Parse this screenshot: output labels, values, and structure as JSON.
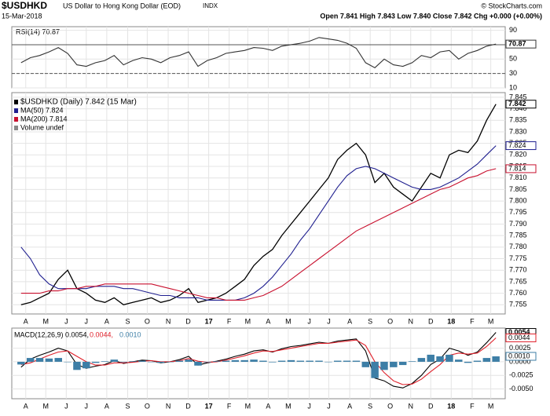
{
  "chart_data": [
    {
      "type": "header",
      "symbol": "$USDHKD",
      "name": "US Dollar to Hong Kong Dollar (EOD)",
      "exchange": "INDX",
      "date": "15-Mar-2018",
      "quote": "Open 7.841   High 7.843   Low 7.840   Close 7.842   Chg +0.000 (+0.00%)",
      "credit": "© StockCharts.com"
    },
    {
      "type": "line",
      "panel": "rsi",
      "title": "RSI(14) 70.87",
      "x": [
        0,
        2,
        4,
        6,
        8,
        10,
        12,
        14,
        16,
        18,
        20,
        22,
        24,
        26,
        28,
        30,
        32,
        34,
        36,
        38,
        40,
        42,
        44,
        46,
        48,
        50,
        52,
        54,
        56,
        58,
        60,
        62,
        64,
        66,
        68,
        70,
        72,
        74,
        76,
        78,
        80,
        82,
        84,
        86,
        88,
        90,
        92,
        94,
        96,
        98,
        100,
        102
      ],
      "xlim": [
        -2,
        104
      ],
      "series": [
        {
          "name": "RSI(14)",
          "color": "#333333",
          "values": [
            45,
            52,
            55,
            60,
            66,
            58,
            42,
            40,
            45,
            48,
            55,
            42,
            48,
            52,
            50,
            45,
            52,
            55,
            60,
            40,
            48,
            52,
            58,
            60,
            62,
            66,
            65,
            62,
            68,
            70,
            72,
            75,
            80,
            78,
            76,
            72,
            65,
            45,
            38,
            50,
            42,
            40,
            45,
            55,
            52,
            60,
            62,
            50,
            58,
            62,
            68,
            70.87
          ]
        }
      ],
      "ref_lines": [
        70,
        30
      ],
      "ylim": [
        10,
        95
      ],
      "yticks": [
        10,
        30,
        50,
        70,
        90
      ]
    },
    {
      "type": "line",
      "panel": "price",
      "x": [
        0,
        2,
        4,
        6,
        8,
        10,
        12,
        14,
        16,
        18,
        20,
        22,
        24,
        26,
        28,
        30,
        32,
        34,
        36,
        38,
        40,
        42,
        44,
        46,
        48,
        50,
        52,
        54,
        56,
        58,
        60,
        62,
        64,
        66,
        68,
        70,
        72,
        74,
        76,
        78,
        80,
        82,
        84,
        86,
        88,
        90,
        92,
        94,
        96,
        98,
        100,
        102
      ],
      "xlim": [
        -2,
        104
      ],
      "series": [
        {
          "name": "$USDHKD (Daily) 7.842 (15 Mar)",
          "color": "#000000",
          "values": [
            7.755,
            7.756,
            7.758,
            7.76,
            7.766,
            7.77,
            7.762,
            7.76,
            7.757,
            7.756,
            7.758,
            7.755,
            7.756,
            7.757,
            7.758,
            7.756,
            7.757,
            7.759,
            7.762,
            7.756,
            7.757,
            7.758,
            7.76,
            7.763,
            7.766,
            7.772,
            7.776,
            7.779,
            7.785,
            7.79,
            7.795,
            7.8,
            7.805,
            7.81,
            7.818,
            7.822,
            7.825,
            7.82,
            7.808,
            7.812,
            7.806,
            7.803,
            7.8,
            7.806,
            7.812,
            7.81,
            7.82,
            7.822,
            7.821,
            7.826,
            7.835,
            7.842
          ]
        },
        {
          "name": "MA(50) 7.824",
          "color": "#1f1f8f",
          "values": [
            7.78,
            7.775,
            7.768,
            7.764,
            7.762,
            7.762,
            7.762,
            7.762,
            7.763,
            7.763,
            7.763,
            7.762,
            7.762,
            7.761,
            7.76,
            7.759,
            7.759,
            7.758,
            7.758,
            7.758,
            7.757,
            7.757,
            7.757,
            7.757,
            7.758,
            7.76,
            7.763,
            7.767,
            7.772,
            7.777,
            7.783,
            7.788,
            7.794,
            7.8,
            7.806,
            7.811,
            7.814,
            7.815,
            7.814,
            7.812,
            7.81,
            7.808,
            7.806,
            7.805,
            7.805,
            7.806,
            7.808,
            7.81,
            7.813,
            7.816,
            7.82,
            7.824
          ]
        },
        {
          "name": "MA(200) 7.814",
          "color": "#c8102e",
          "values": [
            7.76,
            7.76,
            7.76,
            7.761,
            7.761,
            7.762,
            7.762,
            7.763,
            7.763,
            7.764,
            7.764,
            7.764,
            7.764,
            7.764,
            7.764,
            7.763,
            7.762,
            7.761,
            7.76,
            7.759,
            7.758,
            7.758,
            7.757,
            7.757,
            7.757,
            7.758,
            7.759,
            7.761,
            7.763,
            7.766,
            7.769,
            7.772,
            7.775,
            7.778,
            7.781,
            7.784,
            7.787,
            7.789,
            7.791,
            7.793,
            7.795,
            7.797,
            7.799,
            7.801,
            7.803,
            7.805,
            7.806,
            7.808,
            7.81,
            7.811,
            7.813,
            7.814
          ]
        }
      ],
      "legend_extra": "Volume undef",
      "ylim": [
        7.751,
        7.847
      ],
      "yticks": [
        7.755,
        {
          "value": 7.76,
          "label": "7.760"
        },
        7.765,
        {
          "value": 7.77,
          "label": "7.770"
        },
        7.775,
        {
          "value": 7.78,
          "label": "7.780"
        },
        7.785,
        {
          "value": 7.79,
          "label": "7.790"
        },
        7.795,
        {
          "value": 7.8,
          "label": "7.800"
        },
        7.805,
        {
          "value": 7.81,
          "label": "7.810"
        },
        7.815,
        {
          "value": 7.82,
          "label": "7.820"
        },
        7.825,
        {
          "value": 7.83,
          "label": "7.830"
        },
        7.835,
        {
          "value": 7.84,
          "label": "7.840"
        },
        7.845
      ],
      "xticks": [
        {
          "value": 1,
          "label": "A"
        },
        {
          "value": 5.3,
          "label": "M"
        },
        {
          "value": 9.7,
          "label": "J"
        },
        {
          "value": 14,
          "label": "J"
        },
        {
          "value": 18.4,
          "label": "A"
        },
        {
          "value": 22.9,
          "label": "S"
        },
        {
          "value": 27.1,
          "label": "O"
        },
        {
          "value": 31.6,
          "label": "N"
        },
        {
          "value": 35.9,
          "label": "D"
        },
        {
          "value": 40.3,
          "label": "17"
        },
        {
          "value": 44.7,
          "label": "F"
        },
        {
          "value": 48.7,
          "label": "M"
        },
        {
          "value": 53.1,
          "label": "A"
        },
        {
          "value": 57.4,
          "label": "M"
        },
        {
          "value": 61.9,
          "label": "J"
        },
        {
          "value": 66.1,
          "label": "J"
        },
        {
          "value": 70.6,
          "label": "A"
        },
        {
          "value": 75,
          "label": "S"
        },
        {
          "value": 79.3,
          "label": "O"
        },
        {
          "value": 83.7,
          "label": "N"
        },
        {
          "value": 88,
          "label": "D"
        },
        {
          "value": 92.4,
          "label": "18"
        },
        {
          "value": 96.9,
          "label": "F"
        },
        {
          "value": 100.9,
          "label": "M"
        }
      ]
    },
    {
      "type": "macd",
      "panel": "macd",
      "legend": [
        "MACD(12,26,9) 0.0054,",
        "0.0044,",
        "0.0010"
      ],
      "x": [
        0,
        2,
        4,
        6,
        8,
        10,
        12,
        14,
        16,
        18,
        20,
        22,
        24,
        26,
        28,
        30,
        32,
        34,
        36,
        38,
        40,
        42,
        44,
        46,
        48,
        50,
        52,
        54,
        56,
        58,
        60,
        62,
        64,
        66,
        68,
        70,
        72,
        74,
        76,
        78,
        80,
        82,
        84,
        86,
        88,
        90,
        92,
        94,
        96,
        98,
        100,
        102
      ],
      "xlim": [
        -2,
        104
      ],
      "series": [
        {
          "name": "MACD",
          "color": "#000000",
          "last_label": "0.0054",
          "values": [
            -0.001,
            0.0005,
            0.0012,
            0.0018,
            0.0025,
            0.002,
            -0.0005,
            -0.0012,
            -0.0008,
            -0.0005,
            0.0002,
            -0.0003,
            0.0,
            0.0003,
            0.0002,
            -0.0002,
            0.0,
            0.0004,
            0.001,
            -0.0006,
            -0.0002,
            0.0001,
            0.0005,
            0.001,
            0.0014,
            0.002,
            0.0022,
            0.0018,
            0.0024,
            0.0028,
            0.003,
            0.0033,
            0.0036,
            0.0034,
            0.0038,
            0.004,
            0.0042,
            0.002,
            -0.003,
            -0.0035,
            -0.0045,
            -0.0048,
            -0.004,
            -0.0025,
            -0.0005,
            0.0005,
            0.0025,
            0.002,
            0.0012,
            0.0018,
            0.0035,
            0.0054
          ]
        },
        {
          "name": "Signal",
          "color": "#e0202a",
          "last_label": "0.0044",
          "values": [
            -0.0005,
            -0.0002,
            0.0005,
            0.0012,
            0.0018,
            0.002,
            0.001,
            0.0,
            -0.0006,
            -0.0006,
            -0.0002,
            -0.0002,
            -0.0001,
            0.0001,
            0.0002,
            0.0,
            0.0,
            0.0002,
            0.0006,
            0.0001,
            -0.0001,
            0.0,
            0.0003,
            0.0007,
            0.0011,
            0.0016,
            0.002,
            0.0019,
            0.0022,
            0.0025,
            0.0028,
            0.0031,
            0.0034,
            0.0034,
            0.0036,
            0.0038,
            0.004,
            0.003,
            0.0,
            -0.002,
            -0.0035,
            -0.0042,
            -0.0041,
            -0.0032,
            -0.0018,
            -0.0005,
            0.0012,
            0.0016,
            0.0014,
            0.0016,
            0.0028,
            0.0044
          ]
        },
        {
          "name": "Histogram",
          "color": "#3d7ea6",
          "last_label": "0.0010",
          "bars": true,
          "values": [
            -0.0005,
            0.0007,
            0.0007,
            0.0006,
            0.0007,
            0.0,
            -0.0015,
            -0.0012,
            -0.0002,
            0.0001,
            0.0004,
            -0.0001,
            0.0001,
            0.0002,
            0.0,
            -0.0002,
            0.0,
            0.0002,
            0.0004,
            -0.0007,
            -0.0001,
            0.0001,
            0.0002,
            0.0003,
            0.0003,
            0.0004,
            0.0002,
            -0.0001,
            0.0002,
            0.0003,
            0.0002,
            0.0002,
            0.0002,
            0.0,
            0.0002,
            0.0002,
            0.0002,
            -0.001,
            -0.003,
            -0.0015,
            -0.001,
            -0.0006,
            0.0001,
            0.0007,
            0.0013,
            0.001,
            0.0013,
            0.0004,
            -0.0002,
            0.0002,
            0.0007,
            0.001
          ]
        }
      ],
      "ylim": [
        -0.0068,
        0.0062
      ],
      "yticks": [
        0.0025,
        {
          "value": 0,
          "label": "0.0000"
        },
        -0.0025,
        {
          "value": -0.005,
          "label": "-0.0050"
        }
      ],
      "xticks": [
        {
          "value": 1,
          "label": "A"
        },
        {
          "value": 5.3,
          "label": "M"
        },
        {
          "value": 9.7,
          "label": "J"
        },
        {
          "value": 14,
          "label": "J"
        },
        {
          "value": 18.4,
          "label": "A"
        },
        {
          "value": 22.9,
          "label": "S"
        },
        {
          "value": 27.1,
          "label": "O"
        },
        {
          "value": 31.6,
          "label": "N"
        },
        {
          "value": 35.9,
          "label": "D"
        },
        {
          "value": 40.3,
          "label": "17"
        },
        {
          "value": 44.7,
          "label": "F"
        },
        {
          "value": 48.7,
          "label": "M"
        },
        {
          "value": 53.1,
          "label": "A"
        },
        {
          "value": 57.4,
          "label": "M"
        },
        {
          "value": 61.9,
          "label": "J"
        },
        {
          "value": 66.1,
          "label": "J"
        },
        {
          "value": 70.6,
          "label": "A"
        },
        {
          "value": 75,
          "label": "S"
        },
        {
          "value": 79.3,
          "label": "O"
        },
        {
          "value": 83.7,
          "label": "N"
        },
        {
          "value": 88,
          "label": "D"
        },
        {
          "value": 92.4,
          "label": "18"
        },
        {
          "value": 96.9,
          "label": "F"
        },
        {
          "value": 100.9,
          "label": "M"
        }
      ]
    }
  ]
}
